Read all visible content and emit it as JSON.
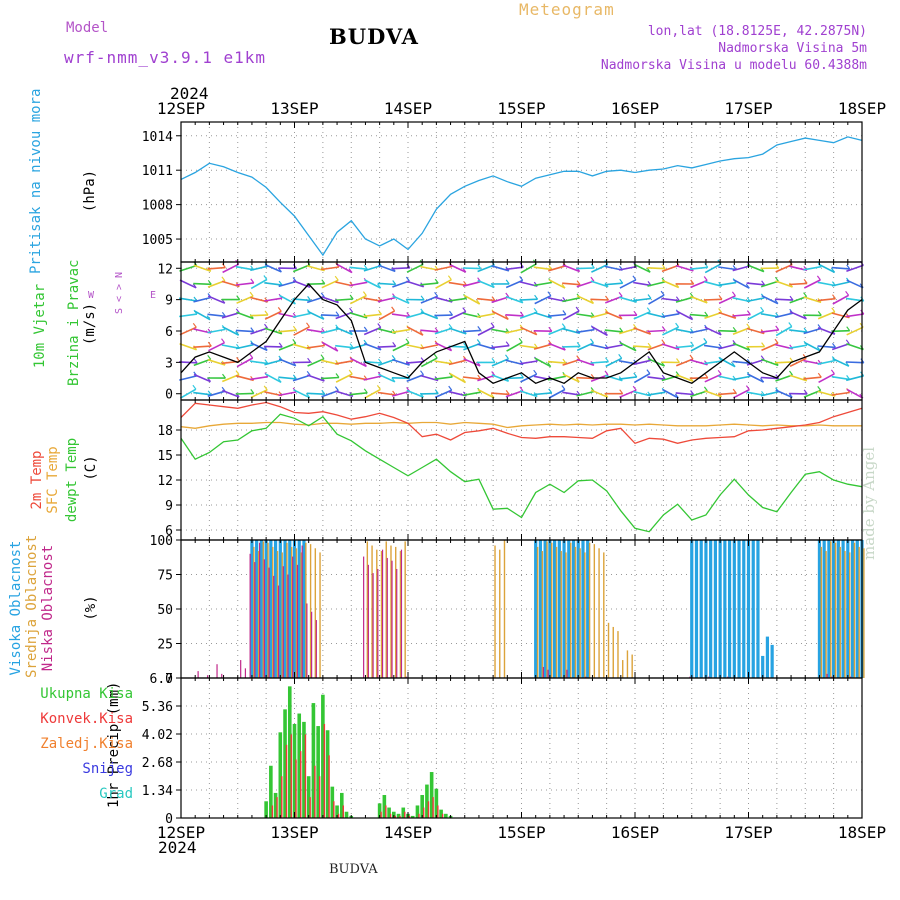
{
  "header": {
    "model_label": "Model",
    "model_name": "wrf-nmm_v3.9.1  e1km",
    "title": "BUDVA",
    "meteogram_label": "Meteogram",
    "lonlat": "lon,lat (18.8125E, 42.2875N)",
    "altitude": "Nadmorska Visina 5m",
    "model_altitude": "Nadmorska Visina u modelu 60.4388m"
  },
  "axis": {
    "year": "2024",
    "day_labels": [
      "12SEP",
      "13SEP",
      "14SEP",
      "15SEP",
      "16SEP",
      "17SEP",
      "18SEP"
    ]
  },
  "footer": {
    "station": "BUDVA",
    "credit": "made by Angel"
  },
  "colors": {
    "pressure": "#2aa4e0",
    "temp2m": "#ee4a3a",
    "sfc": "#e8a838",
    "dewpt": "#34c634",
    "cloud_high": "#27a3e2",
    "cloud_mid": "#dca33a",
    "cloud_low": "#c0288a",
    "rain_total": "#34c634",
    "rain_conv": "#ee3a3a",
    "rain_frz": "#f0802e",
    "snow": "#3a3ae0",
    "hail": "#28c8c0",
    "wind_label": "#b455c8",
    "grid": "#999999"
  },
  "chart_data": [
    {
      "type": "line",
      "panel": "pressure",
      "ylabel": "Pritisak na nivou mora",
      "unit": "(hPa)",
      "ylim": [
        1003,
        1015.2
      ],
      "yticks": [
        1005,
        1008,
        1011,
        1014
      ],
      "x_hours": [
        0,
        3,
        6,
        9,
        12,
        15,
        18,
        21,
        24,
        27,
        30,
        33,
        36,
        39,
        42,
        45,
        48,
        51,
        54,
        57,
        60,
        63,
        66,
        69,
        72,
        75,
        78,
        81,
        84,
        87,
        90,
        93,
        96,
        99,
        102,
        105,
        108,
        111,
        114,
        117,
        120,
        123,
        126,
        129,
        132,
        135,
        138,
        141,
        144
      ],
      "series": [
        {
          "values": [
            1010.2,
            1010.8,
            1011.6,
            1011.3,
            1010.8,
            1010.4,
            1009.5,
            1008.2,
            1007.0,
            1005.3,
            1003.6,
            1005.6,
            1006.6,
            1005.0,
            1004.4,
            1005.0,
            1004.1,
            1005.5,
            1007.6,
            1008.9,
            1009.6,
            1010.1,
            1010.5,
            1010.0,
            1009.6,
            1010.3,
            1010.6,
            1010.9,
            1010.9,
            1010.5,
            1010.9,
            1011.0,
            1010.8,
            1011.0,
            1011.1,
            1011.4,
            1011.2,
            1011.5,
            1011.8,
            1012.0,
            1012.1,
            1012.4,
            1013.2,
            1013.5,
            1013.8,
            1013.6,
            1013.4,
            1013.9,
            1013.6
          ]
        }
      ]
    },
    {
      "type": "barbs",
      "panel": "wind",
      "ylabel": "10m Vjetar Brzina i Pravac",
      "unit": "(m/s)",
      "compass": [
        "N",
        "S",
        "W",
        "E"
      ],
      "ylim": [
        -0.6,
        12.6
      ],
      "yticks": [
        0,
        3,
        6,
        9,
        12
      ],
      "x_hours": [
        0,
        3,
        6,
        9,
        12,
        15,
        18,
        21,
        24,
        27,
        30,
        33,
        36,
        39,
        42,
        45,
        48,
        51,
        54,
        57,
        60,
        63,
        66,
        69,
        72,
        75,
        78,
        81,
        84,
        87,
        90,
        93,
        96,
        99,
        102,
        105,
        108,
        111,
        114,
        117,
        120,
        123,
        126,
        129,
        132,
        135,
        138,
        141,
        144
      ],
      "series": [
        {
          "name": "speed",
          "values": [
            2,
            3.5,
            4,
            3.5,
            3,
            4,
            5,
            7,
            9,
            10.5,
            9,
            8.5,
            7,
            3,
            2.5,
            2,
            1.5,
            3,
            4,
            4.5,
            5,
            2,
            1,
            1.5,
            2,
            1,
            1.5,
            1,
            2,
            1.5,
            1.5,
            2,
            3,
            4,
            2,
            1.5,
            1,
            2,
            3,
            4,
            3,
            2,
            1.5,
            3,
            3.5,
            4,
            6,
            8,
            9
          ]
        }
      ]
    },
    {
      "type": "line",
      "panel": "temperature",
      "ylabel": "Temp",
      "legend": [
        "2m Temp",
        "SFC Temp",
        "dewpt Temp"
      ],
      "unit": "(C)",
      "ylim": [
        4.8,
        21.6
      ],
      "yticks": [
        6,
        9,
        12,
        15,
        18
      ],
      "x_hours": [
        0,
        3,
        6,
        9,
        12,
        15,
        18,
        21,
        24,
        27,
        30,
        33,
        36,
        39,
        42,
        45,
        48,
        51,
        54,
        57,
        60,
        63,
        66,
        69,
        72,
        75,
        78,
        81,
        84,
        87,
        90,
        93,
        96,
        99,
        102,
        105,
        108,
        111,
        114,
        117,
        120,
        123,
        126,
        129,
        132,
        135,
        138,
        141,
        144
      ],
      "series": [
        {
          "name": "2m Temp",
          "values": [
            19.5,
            21.2,
            21.0,
            20.8,
            20.6,
            21.0,
            21.3,
            20.8,
            20.1,
            20.0,
            20.2,
            19.8,
            19.3,
            19.6,
            20.0,
            19.5,
            18.8,
            17.2,
            17.5,
            16.8,
            17.7,
            17.9,
            18.2,
            17.6,
            17.1,
            17.0,
            17.2,
            17.2,
            17.1,
            17.0,
            17.9,
            18.2,
            16.4,
            17.0,
            16.9,
            16.4,
            16.8,
            17.0,
            17.1,
            17.2,
            17.9,
            18.0,
            18.2,
            18.4,
            18.6,
            18.9,
            19.6,
            20.1,
            20.6
          ]
        },
        {
          "name": "SFC Temp",
          "values": [
            18.4,
            18.2,
            18.5,
            18.7,
            18.8,
            18.8,
            18.9,
            18.9,
            18.7,
            18.6,
            18.8,
            18.8,
            18.7,
            18.8,
            18.8,
            18.9,
            18.8,
            18.9,
            18.9,
            18.7,
            18.9,
            18.8,
            18.7,
            18.3,
            18.5,
            18.6,
            18.7,
            18.6,
            18.7,
            18.6,
            18.7,
            18.7,
            18.6,
            18.7,
            18.6,
            18.5,
            18.5,
            18.5,
            18.6,
            18.7,
            18.6,
            18.5,
            18.6,
            18.5,
            18.5,
            18.6,
            18.5,
            18.5,
            18.5
          ]
        },
        {
          "name": "dewpt Temp",
          "values": [
            17.0,
            14.5,
            15.3,
            16.6,
            16.8,
            17.9,
            18.2,
            19.9,
            19.4,
            18.5,
            19.6,
            17.5,
            16.7,
            15.5,
            14.5,
            13.5,
            12.5,
            13.5,
            14.5,
            13.0,
            11.8,
            12.1,
            8.5,
            8.6,
            7.5,
            10.5,
            11.5,
            10.5,
            11.9,
            12.0,
            10.7,
            8.3,
            6.2,
            5.8,
            7.8,
            9.1,
            7.2,
            7.8,
            10.2,
            12.1,
            10.2,
            8.7,
            8.2,
            10.5,
            12.7,
            13.0,
            12.0,
            11.5,
            11.2
          ]
        }
      ]
    },
    {
      "type": "bar",
      "panel": "clouds",
      "ylabel": "Oblacnost",
      "legend": [
        "Visoka Oblacnost",
        "Srednja Oblacnost",
        "Niska Oblacnost"
      ],
      "unit": "(%)",
      "ylim": [
        0,
        100
      ],
      "yticks": [
        0,
        25,
        50,
        75,
        100
      ],
      "segments_hours": [
        [
          0,
          16,
          "none"
        ],
        [
          16,
          37,
          "mix"
        ],
        [
          37,
          42,
          "none"
        ],
        [
          42,
          56,
          "mid"
        ],
        [
          56,
          66,
          "none"
        ],
        [
          66,
          72,
          "mid"
        ],
        [
          72,
          88,
          "mixhigh"
        ],
        [
          88,
          95,
          "mid-sparse"
        ],
        [
          95,
          108,
          "none"
        ],
        [
          108,
          124,
          "high"
        ],
        [
          124,
          136,
          "none"
        ],
        [
          136,
          144,
          "mixhigh"
        ]
      ],
      "series": [
        {
          "name": "Visoka Oblacnost",
          "values": [
            0,
            0,
            0,
            0,
            0,
            100,
            100,
            100,
            100,
            0,
            0,
            0,
            0,
            0,
            0,
            0,
            0,
            0,
            0,
            0,
            0,
            0,
            0,
            0,
            0,
            100,
            100,
            100,
            100,
            0,
            0,
            0,
            0,
            0,
            0,
            0,
            100,
            100,
            100,
            100,
            100,
            30,
            0,
            0,
            0,
            100,
            100,
            100,
            100
          ]
        },
        {
          "name": "Srednja Oblacnost",
          "values": [
            0,
            0,
            0,
            0,
            0,
            100,
            100,
            100,
            100,
            100,
            0,
            0,
            0,
            100,
            100,
            100,
            0,
            0,
            0,
            0,
            0,
            0,
            100,
            0,
            0,
            100,
            100,
            100,
            100,
            100,
            40,
            20,
            0,
            0,
            0,
            0,
            0,
            0,
            0,
            0,
            0,
            0,
            0,
            0,
            0,
            100,
            100,
            100,
            100
          ]
        },
        {
          "name": "Niska Oblacnost",
          "values": [
            0,
            5,
            10,
            5,
            15,
            100,
            90,
            85,
            100,
            60,
            0,
            0,
            0,
            90,
            95,
            95,
            5,
            0,
            0,
            0,
            0,
            0,
            0,
            0,
            0,
            10,
            10,
            10,
            5,
            0,
            0,
            0,
            0,
            0,
            0,
            0,
            5,
            5,
            5,
            0,
            0,
            0,
            0,
            0,
            0,
            5,
            5,
            5,
            5
          ]
        }
      ]
    },
    {
      "type": "bar",
      "panel": "precip",
      "ylabel": "1hr Precip (mm)",
      "legend": [
        "Ukupna Kisa",
        "Konvek.Kisa",
        "Zaledj.Kisa",
        "Snijeg",
        "Grad"
      ],
      "ylim": [
        0,
        6.7
      ],
      "yticks": [
        0,
        1.34,
        2.68,
        4.02,
        5.36,
        6.7
      ],
      "x_hours": [
        18,
        19,
        20,
        21,
        22,
        23,
        24,
        25,
        26,
        27,
        28,
        29,
        30,
        31,
        32,
        33,
        34,
        35,
        36,
        37,
        38,
        42,
        43,
        44,
        45,
        46,
        47,
        48,
        49,
        50,
        51,
        52,
        53,
        54,
        55,
        56,
        57
      ],
      "series": [
        {
          "name": "Ukupna Kisa",
          "values": [
            0.8,
            2.5,
            1.2,
            4.1,
            5.2,
            6.3,
            4.5,
            5.0,
            4.6,
            2.0,
            5.5,
            4.4,
            5.9,
            4.2,
            1.5,
            0.6,
            1.2,
            0.3,
            0.1,
            0.0,
            0.0,
            0.7,
            1.1,
            0.5,
            0.3,
            0.2,
            0.5,
            0.2,
            0.1,
            0.6,
            1.1,
            1.6,
            2.2,
            1.4,
            0.4,
            0.2,
            0.1
          ]
        },
        {
          "name": "Konvek.Kisa",
          "values": [
            0.0,
            0.6,
            1.0,
            2.0,
            3.5,
            4.0,
            2.8,
            3.2,
            4.0,
            1.0,
            2.5,
            2.0,
            4.5,
            3.0,
            0.8,
            0.2,
            0.6,
            0.0,
            0.0,
            0.0,
            0.0,
            0.3,
            0.6,
            0.2,
            0.1,
            0.1,
            0.3,
            0.1,
            0.0,
            0.2,
            0.5,
            0.8,
            1.0,
            0.6,
            0.2,
            0.0,
            0.0
          ]
        }
      ]
    }
  ],
  "panel_labels": {
    "pressure": "Pritisak na nivou mora",
    "pressure_unit": "(hPa)",
    "wind_1": "10m Vjetar",
    "wind_2": "Brzina i Pravac",
    "wind_unit": "(m/s)",
    "temp_1": "2m Temp",
    "temp_2": "SFC Temp",
    "temp_3": "dewpt Temp",
    "temp_unit": "(C)",
    "cloud_1": "Visoka Oblacnost",
    "cloud_2": "Srednja Oblacnost",
    "cloud_3": "Niska Oblacnost",
    "cloud_unit": "(%)",
    "precip_label": "1hr Precip (mm)",
    "precip_legend": [
      "Ukupna Kisa",
      "Konvek.Kisa",
      "Zaledj.Kisa",
      "Snijeg",
      "Grad"
    ]
  }
}
